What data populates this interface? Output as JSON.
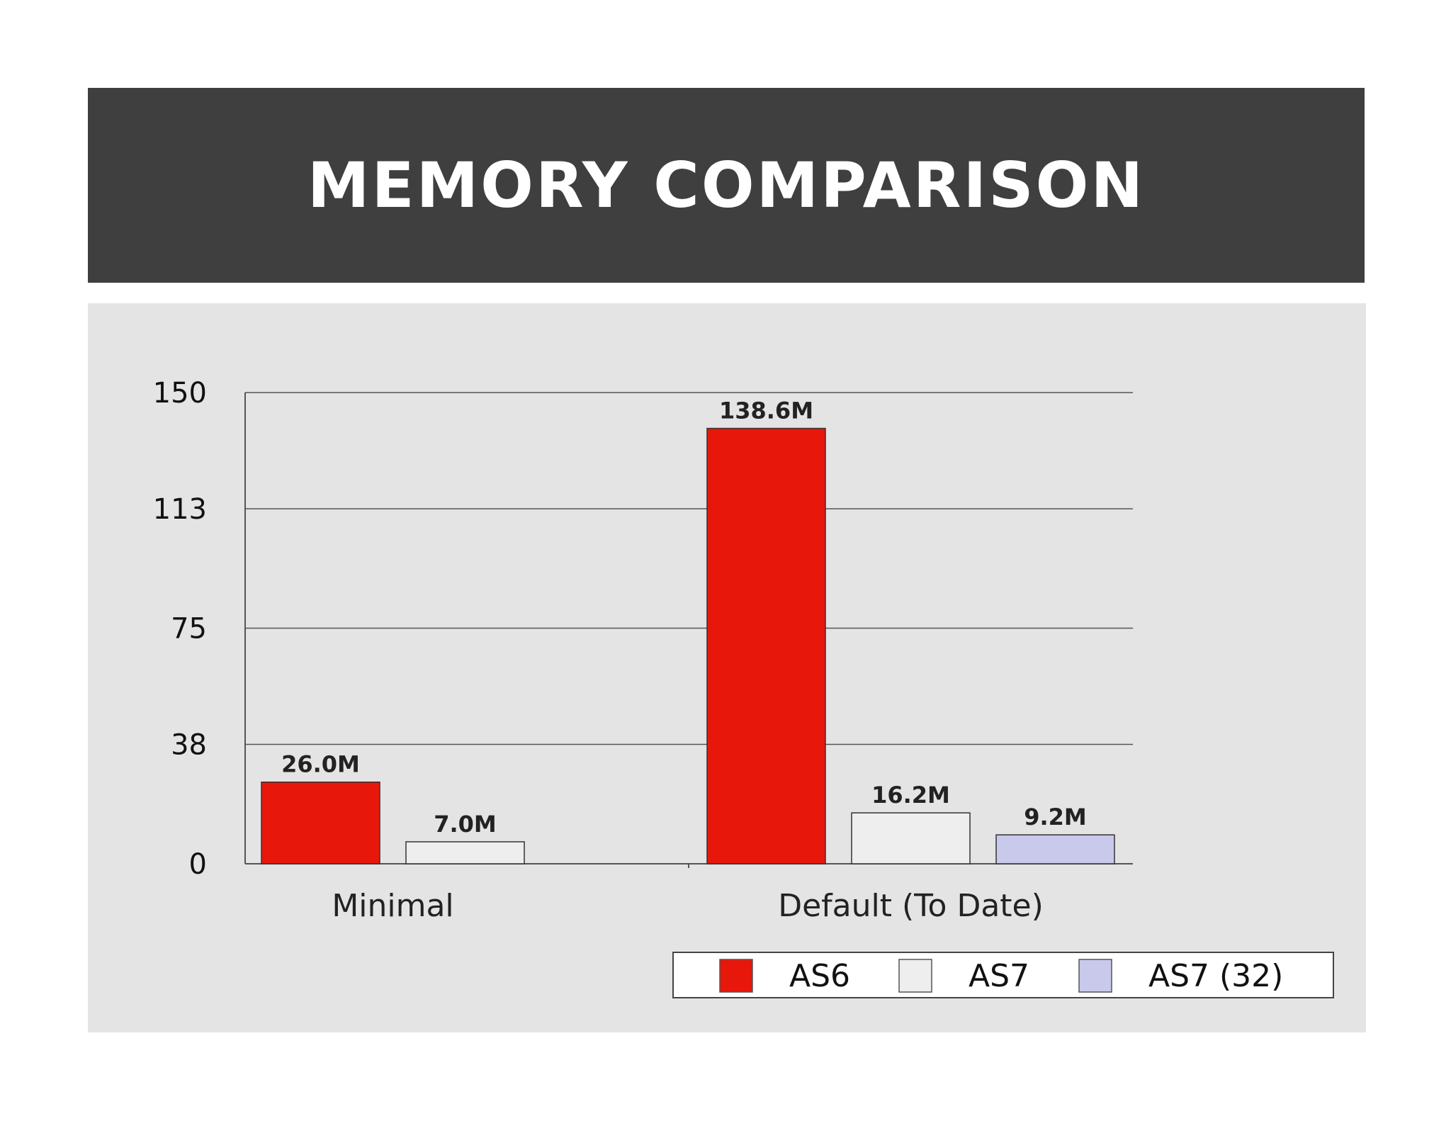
{
  "slide": {
    "title": "MEMORY COMPARISON"
  },
  "colors": {
    "title_bar": "#3f3f3f",
    "panel": "#e4e4e5",
    "AS6": "#e8170c",
    "AS7": "#eeeeef",
    "AS7 (32)": "#c9c9ec"
  },
  "chart_data": {
    "type": "bar",
    "title": "",
    "xlabel": "",
    "ylabel": "",
    "ylim": [
      0,
      150
    ],
    "yticks": [
      "0",
      "38",
      "75",
      "113",
      "150"
    ],
    "grid": true,
    "legend_position": "bottom-right",
    "categories": [
      "Minimal",
      "Default (To Date)"
    ],
    "series": [
      {
        "name": "AS6",
        "values": [
          26.0,
          138.6
        ],
        "labels": [
          "26.0M",
          "138.6M"
        ]
      },
      {
        "name": "AS7",
        "values": [
          7.0,
          16.2
        ],
        "labels": [
          "7.0M",
          "16.2M"
        ]
      },
      {
        "name": "AS7 (32)",
        "values": [
          null,
          9.2
        ],
        "labels": [
          null,
          "9.2M"
        ]
      }
    ]
  }
}
